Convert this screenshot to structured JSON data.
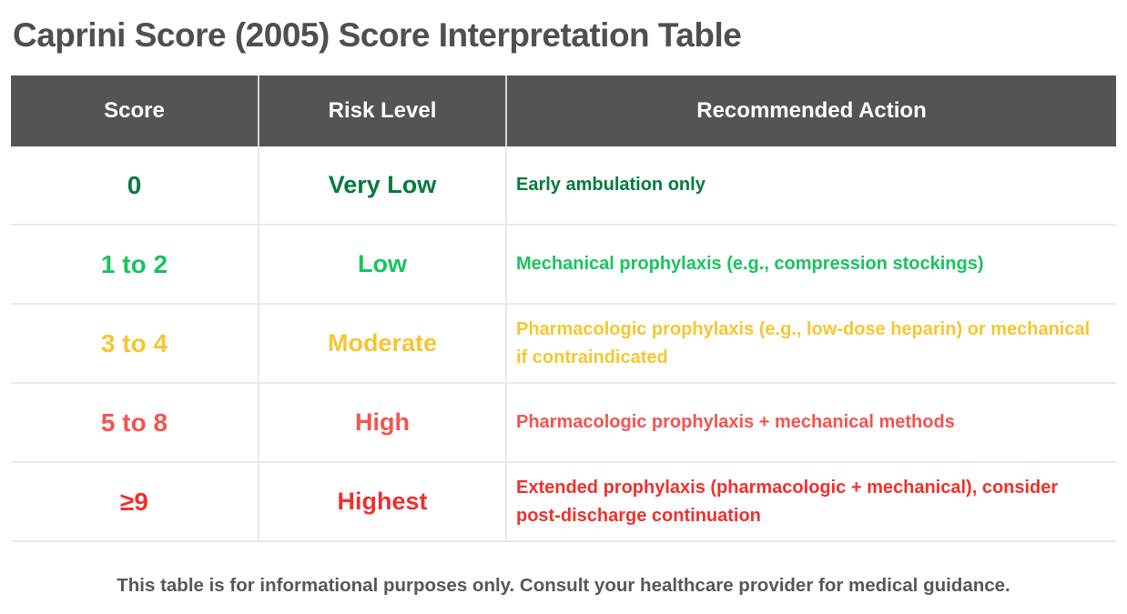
{
  "page": {
    "title": "Caprini Score (2005) Score Interpretation Table",
    "disclaimer": "This table is for informational purposes only. Consult your healthcare provider for medical guidance."
  },
  "colors": {
    "header_bg": "#545454",
    "title_text": "#4f4f4f",
    "disclaimer_text": "#575757",
    "very_low": "#047a3e",
    "low": "#19c35f",
    "moderate": "#f4c731",
    "high": "#f4534e",
    "highest": "#ee312d"
  },
  "table": {
    "columns": [
      "Score",
      "Risk Level",
      "Recommended Action"
    ],
    "rows": [
      {
        "score": "0",
        "risk_level": "Very Low",
        "action": "Early ambulation only",
        "color": "#047a3e"
      },
      {
        "score": "1 to 2",
        "risk_level": "Low",
        "action": "Mechanical prophylaxis (e.g., compression stockings)",
        "color": "#19c35f"
      },
      {
        "score": "3 to 4",
        "risk_level": "Moderate",
        "action": "Pharmacologic prophylaxis (e.g., low-dose heparin) or mechanical if contraindicated",
        "color": "#f4c731"
      },
      {
        "score": "5 to 8",
        "risk_level": "High",
        "action": "Pharmacologic prophylaxis + mechanical methods",
        "color": "#f4534e"
      },
      {
        "score": "≥9",
        "risk_level": "Highest",
        "action": "Extended prophylaxis (pharmacologic + mechanical), consider post-discharge continuation",
        "color": "#ee312d"
      }
    ]
  }
}
